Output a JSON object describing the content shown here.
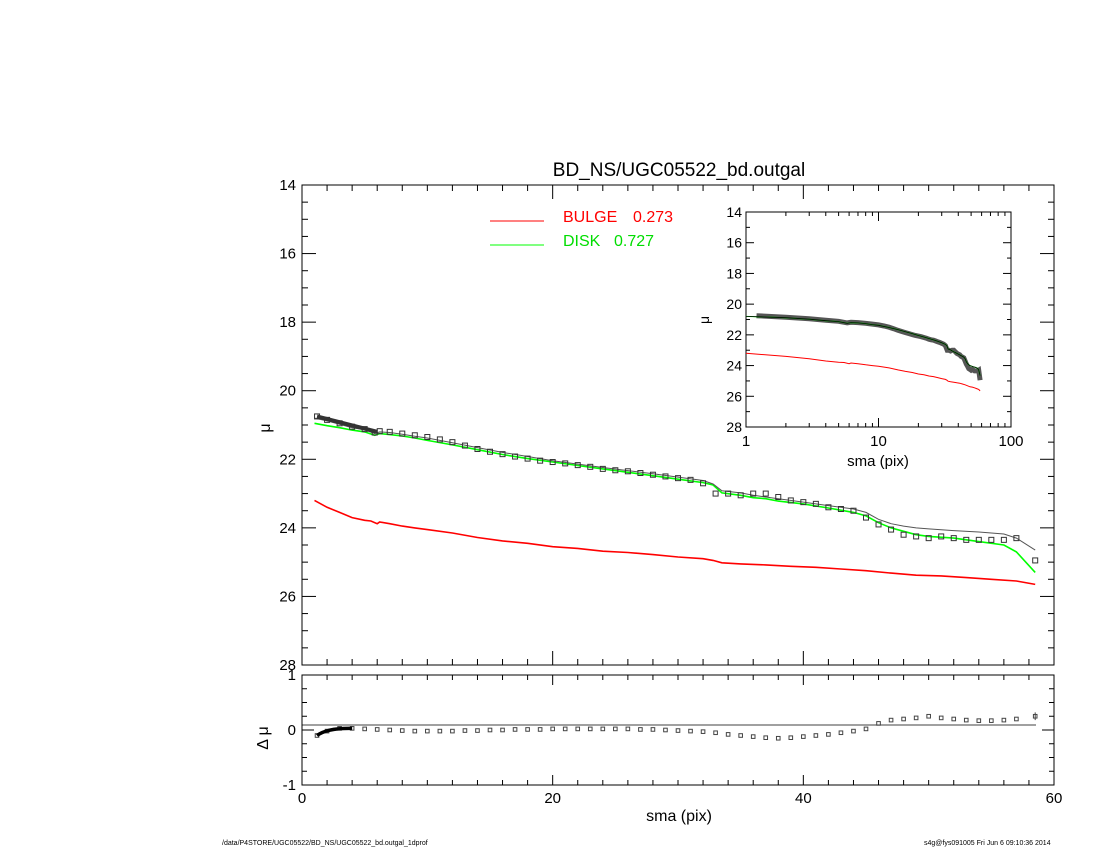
{
  "chart_data": [
    {
      "type": "line",
      "title": "BD_NS/UGC05522_bd.outgal",
      "xlabel": "",
      "ylabel": "μ",
      "xlim": [
        0,
        60
      ],
      "ylim": [
        28,
        14
      ],
      "yticks": [
        "14",
        "16",
        "18",
        "20",
        "22",
        "24",
        "26",
        "28"
      ],
      "legend": [
        {
          "label": "BULGE",
          "value": "0.273",
          "color": "#ff0000"
        },
        {
          "label": "DISK",
          "value": "0.727",
          "color": "#00ff00"
        }
      ],
      "data_points": {
        "x": [
          1.2,
          2,
          3,
          4,
          5,
          5.8,
          6.2,
          7,
          8,
          9,
          10,
          11,
          12,
          13,
          14,
          15,
          16,
          17,
          18,
          19,
          20,
          21,
          22,
          23,
          24,
          25,
          26,
          27,
          28,
          29,
          30,
          31,
          32,
          33,
          34,
          35,
          36,
          37,
          38,
          39,
          40,
          41,
          42,
          43,
          44,
          45,
          46,
          47,
          48,
          49,
          50,
          51,
          52,
          53,
          54,
          55,
          56,
          57,
          58.5
        ],
        "y": [
          20.75,
          20.85,
          20.95,
          21.05,
          21.12,
          21.22,
          21.18,
          21.2,
          21.25,
          21.3,
          21.35,
          21.42,
          21.5,
          21.6,
          21.7,
          21.78,
          21.85,
          21.92,
          21.98,
          22.04,
          22.08,
          22.12,
          22.17,
          22.22,
          22.28,
          22.32,
          22.35,
          22.4,
          22.45,
          22.5,
          22.55,
          22.6,
          22.7,
          23.0,
          23.0,
          23.05,
          23.0,
          23.0,
          23.1,
          23.2,
          23.25,
          23.3,
          23.4,
          23.45,
          23.5,
          23.7,
          23.9,
          24.05,
          24.2,
          24.25,
          24.3,
          24.25,
          24.3,
          24.35,
          24.35,
          24.35,
          24.35,
          24.3,
          24.95
        ]
      },
      "series": [
        {
          "name": "BULGE",
          "color": "#ff0000",
          "x": [
            1,
            2,
            3,
            4,
            5,
            5.5,
            6,
            6.2,
            7,
            8,
            9,
            10,
            12,
            14,
            16,
            18,
            20,
            22,
            24,
            26,
            28,
            30,
            32,
            32.8,
            33.5,
            35,
            37,
            39,
            41,
            43,
            45,
            47,
            49,
            51,
            53,
            55,
            57,
            58.5
          ],
          "y": [
            23.2,
            23.4,
            23.55,
            23.7,
            23.78,
            23.8,
            23.88,
            23.83,
            23.88,
            23.95,
            24.0,
            24.05,
            24.15,
            24.28,
            24.38,
            24.45,
            24.55,
            24.6,
            24.68,
            24.72,
            24.78,
            24.85,
            24.9,
            24.95,
            25.02,
            25.05,
            25.08,
            25.12,
            25.15,
            25.2,
            25.25,
            25.32,
            25.38,
            25.4,
            25.45,
            25.5,
            25.55,
            25.65
          ]
        },
        {
          "name": "DISK",
          "color": "#00ff00",
          "x": [
            1,
            2,
            3,
            4,
            5,
            5.8,
            6.2,
            7,
            8,
            9,
            10,
            12,
            14,
            16,
            18,
            20,
            22,
            24,
            26,
            28,
            30,
            32,
            32.8,
            33.5,
            35,
            36,
            37,
            38,
            40,
            42,
            44,
            45,
            46,
            47,
            48,
            49,
            50,
            52,
            54,
            56,
            57,
            58.5
          ],
          "y": [
            20.95,
            21.02,
            21.08,
            21.15,
            21.2,
            21.3,
            21.25,
            21.28,
            21.32,
            21.38,
            21.45,
            21.58,
            21.72,
            21.86,
            21.98,
            22.08,
            22.18,
            22.28,
            22.38,
            22.48,
            22.58,
            22.68,
            22.75,
            22.98,
            23.05,
            23.12,
            23.15,
            23.22,
            23.3,
            23.42,
            23.55,
            23.65,
            23.85,
            24.0,
            24.1,
            24.2,
            24.25,
            24.3,
            24.4,
            24.5,
            24.7,
            25.3
          ]
        },
        {
          "name": "",
          "color": "#555555",
          "x": [
            1,
            2,
            3,
            4,
            5,
            5.8,
            6.2,
            7,
            8,
            9,
            10,
            12,
            14,
            16,
            18,
            20,
            22,
            24,
            26,
            28,
            30,
            32,
            32.8,
            33.5,
            35,
            36,
            37,
            38,
            40,
            42,
            44,
            45,
            46,
            47,
            48,
            49,
            50,
            52,
            54,
            56,
            57,
            58.5
          ],
          "y": [
            20.8,
            20.88,
            20.98,
            21.08,
            21.14,
            21.25,
            21.2,
            21.22,
            21.27,
            21.33,
            21.38,
            21.52,
            21.66,
            21.8,
            21.92,
            22.04,
            22.14,
            22.24,
            22.33,
            22.42,
            22.52,
            22.62,
            22.72,
            22.92,
            22.98,
            23.05,
            23.1,
            23.15,
            23.25,
            23.35,
            23.45,
            23.55,
            23.75,
            23.88,
            23.95,
            24.0,
            24.03,
            24.08,
            24.12,
            24.18,
            24.3,
            24.65
          ]
        }
      ]
    },
    {
      "type": "scatter",
      "xlabel": "sma (pix)",
      "ylabel": "Δ μ",
      "xlim": [
        0,
        60
      ],
      "ylim": [
        -1,
        1
      ],
      "xticks": [
        "0",
        "20",
        "40",
        "60"
      ],
      "yticks": [
        "1",
        "0",
        "-1"
      ],
      "x": [
        1.2,
        2,
        3,
        4,
        5,
        6,
        7,
        8,
        9,
        10,
        11,
        12,
        13,
        14,
        15,
        16,
        17,
        18,
        19,
        20,
        21,
        22,
        23,
        24,
        25,
        26,
        27,
        28,
        29,
        30,
        31,
        32,
        33,
        34,
        35,
        36,
        37,
        38,
        39,
        40,
        41,
        42,
        43,
        44,
        45,
        46,
        47,
        48,
        49,
        50,
        51,
        52,
        53,
        54,
        55,
        56,
        57,
        58.5
      ],
      "y": [
        -0.1,
        -0.02,
        0.03,
        0.03,
        0.02,
        0.01,
        0.0,
        -0.01,
        -0.02,
        -0.02,
        -0.02,
        -0.02,
        -0.01,
        -0.01,
        0.0,
        0.0,
        0.01,
        0.01,
        0.01,
        0.02,
        0.02,
        0.02,
        0.02,
        0.02,
        0.02,
        0.02,
        0.01,
        0.01,
        0.0,
        -0.01,
        -0.02,
        -0.03,
        -0.05,
        -0.08,
        -0.1,
        -0.12,
        -0.14,
        -0.15,
        -0.14,
        -0.12,
        -0.1,
        -0.08,
        -0.05,
        -0.02,
        0.02,
        0.12,
        0.18,
        0.2,
        0.22,
        0.25,
        0.22,
        0.2,
        0.18,
        0.17,
        0.17,
        0.18,
        0.2,
        0.25
      ]
    },
    {
      "type": "line",
      "xlabel": "sma (pix)",
      "ylabel": "μ",
      "xscale": "log",
      "xlim": [
        1,
        100
      ],
      "ylim": [
        28,
        14
      ],
      "xticks": [
        "1",
        "10",
        "100"
      ],
      "yticks": [
        "14",
        "16",
        "18",
        "20",
        "22",
        "24",
        "26",
        "28"
      ]
    }
  ],
  "footer": {
    "left": "/data/P4STORE/UGC05522/BD_NS/UGC05522_bd.outgal_1dprof",
    "right": "s4g@fys091005  Fri Jun  6 09:10:36 2014"
  }
}
